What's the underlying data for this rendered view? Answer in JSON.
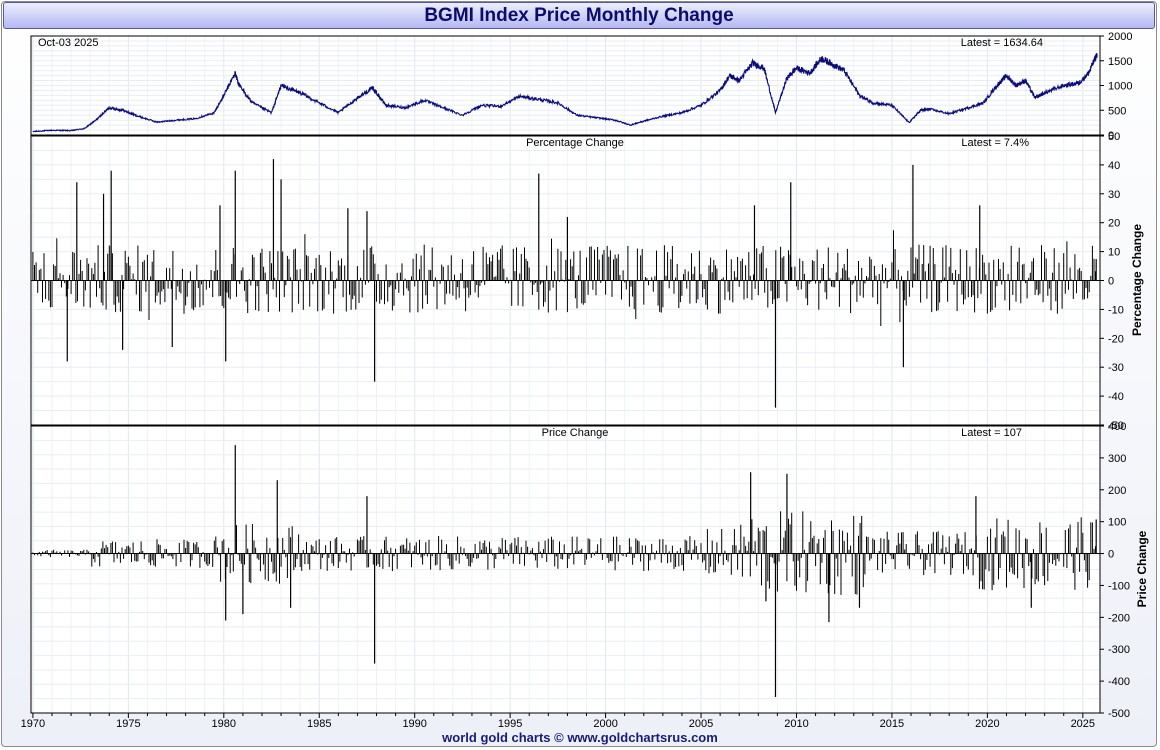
{
  "chart_data": {
    "type": "line",
    "title": "BGMI Index Price Monthly Change",
    "date_label": "Oct-03  2025",
    "x_ticks": [
      "1970",
      "1975",
      "1980",
      "1985",
      "1990",
      "1995",
      "2000",
      "2005",
      "2010",
      "2015",
      "2020",
      "2025"
    ],
    "x_range": [
      1969.9,
      2025.9
    ],
    "footer": "world gold charts © www.goldchartsrus.com",
    "panels": [
      {
        "id": "price",
        "type": "line",
        "label": "",
        "latest_label": "Latest = 1634.64",
        "ylabel": "",
        "ylim": [
          0,
          2000
        ],
        "y_ticks": [
          "2000",
          "1500",
          "1000",
          "500",
          "0"
        ],
        "series": [
          {
            "x": [
              1970.0,
              1971.0,
              1972.0,
              1972.7,
              1973.3,
              1974.0,
              1974.7,
              1975.5,
              1976.5,
              1977.5,
              1978.5,
              1979.5,
              1980.0,
              1980.6,
              1980.8,
              1981.5,
              1982.5,
              1983.0,
              1984.0,
              1985.0,
              1986.0,
              1987.0,
              1987.8,
              1988.5,
              1989.5,
              1990.5,
              1991.5,
              1992.5,
              1993.5,
              1994.5,
              1995.5,
              1996.5,
              1997.5,
              1998.5,
              1999.5,
              2000.5,
              2001.3,
              2002.0,
              2003.0,
              2004.0,
              2005.0,
              2006.0,
              2006.5,
              2007.0,
              2007.7,
              2008.3,
              2008.9,
              2009.5,
              2010.0,
              2010.7,
              2011.3,
              2011.8,
              2012.5,
              2013.3,
              2014.0,
              2015.0,
              2015.9,
              2016.5,
              2017.0,
              2018.0,
              2019.0,
              2019.8,
              2020.5,
              2021.0,
              2021.5,
              2022.0,
              2022.5,
              2023.0,
              2024.0,
              2024.8,
              2025.3,
              2025.75
            ],
            "y": [
              70,
              95,
              90,
              130,
              300,
              550,
              500,
              380,
              260,
              300,
              330,
              450,
              800,
              1250,
              1000,
              650,
              450,
              1000,
              850,
              650,
              450,
              750,
              950,
              600,
              550,
              700,
              550,
              400,
              600,
              580,
              780,
              720,
              650,
              400,
              350,
              300,
              200,
              280,
              380,
              450,
              600,
              900,
              1200,
              1100,
              1450,
              1350,
              450,
              1150,
              1350,
              1250,
              1550,
              1450,
              1300,
              800,
              650,
              600,
              250,
              500,
              520,
              430,
              550,
              650,
              1000,
              1200,
              1000,
              1100,
              750,
              850,
              1000,
              1050,
              1250,
              1634.64
            ]
          }
        ]
      },
      {
        "id": "pct",
        "type": "bar",
        "label": "Percentage Change",
        "latest_label": "Latest = 7.4%",
        "ylabel": "Percentage Change",
        "ylim": [
          -50,
          50
        ],
        "y_ticks": [
          "50",
          "40",
          "30",
          "20",
          "10",
          "0",
          "-10",
          "-20",
          "-30",
          "-40",
          "-50"
        ],
        "spikes": [
          {
            "x": 1971.8,
            "y": -28
          },
          {
            "x": 1972.3,
            "y": 34
          },
          {
            "x": 1973.7,
            "y": 30
          },
          {
            "x": 1974.1,
            "y": 38
          },
          {
            "x": 1974.7,
            "y": -24
          },
          {
            "x": 1977.3,
            "y": -23
          },
          {
            "x": 1979.8,
            "y": 26
          },
          {
            "x": 1980.1,
            "y": -28
          },
          {
            "x": 1980.6,
            "y": 38
          },
          {
            "x": 1982.6,
            "y": 42
          },
          {
            "x": 1983.0,
            "y": 35
          },
          {
            "x": 1986.5,
            "y": 25
          },
          {
            "x": 1987.5,
            "y": 24
          },
          {
            "x": 1987.9,
            "y": -35
          },
          {
            "x": 1996.5,
            "y": 37
          },
          {
            "x": 1998.0,
            "y": 22
          },
          {
            "x": 2007.8,
            "y": 26
          },
          {
            "x": 2008.9,
            "y": -44
          },
          {
            "x": 2009.7,
            "y": 34
          },
          {
            "x": 2015.6,
            "y": -30
          },
          {
            "x": 2016.1,
            "y": 40
          },
          {
            "x": 2019.6,
            "y": 26
          },
          {
            "x": 2025.7,
            "y": 7.4
          }
        ]
      },
      {
        "id": "chg",
        "type": "bar",
        "label": "Price Change",
        "latest_label": "Latest = 107",
        "ylabel": "Price Change",
        "ylim": [
          -500,
          400
        ],
        "y_ticks": [
          "400",
          "300",
          "200",
          "100",
          "0",
          "-100",
          "-200",
          "-300",
          "-400",
          "-500"
        ],
        "spikes": [
          {
            "x": 1980.1,
            "y": -210
          },
          {
            "x": 1980.6,
            "y": 340
          },
          {
            "x": 1981.0,
            "y": -190
          },
          {
            "x": 1982.8,
            "y": 230
          },
          {
            "x": 1983.5,
            "y": -170
          },
          {
            "x": 1987.5,
            "y": 180
          },
          {
            "x": 1987.9,
            "y": -345
          },
          {
            "x": 2007.6,
            "y": 255
          },
          {
            "x": 2008.4,
            "y": -150
          },
          {
            "x": 2008.9,
            "y": -450
          },
          {
            "x": 2009.5,
            "y": 250
          },
          {
            "x": 2011.7,
            "y": -215
          },
          {
            "x": 2013.3,
            "y": -170
          },
          {
            "x": 2019.4,
            "y": 180
          },
          {
            "x": 2022.3,
            "y": -170
          },
          {
            "x": 2025.7,
            "y": 107
          }
        ]
      }
    ]
  }
}
